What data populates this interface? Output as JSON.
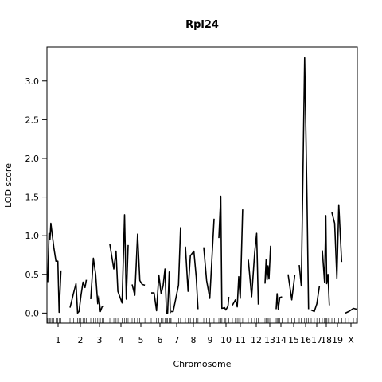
{
  "chart_data": {
    "type": "line",
    "title": "Rpl24",
    "xlabel": "Chromosome",
    "ylabel": "LOD score",
    "ylim": [
      -0.13,
      3.44
    ],
    "y_ticks": [
      0.0,
      0.5,
      1.0,
      1.5,
      2.0,
      2.5,
      3.0
    ],
    "y_tick_labels": [
      "0.0",
      "0.5",
      "1.0",
      "1.5",
      "2.0",
      "2.5",
      "3.0"
    ],
    "grid": false,
    "legend": "none",
    "line_color": "#000000",
    "chromosomes": [
      {
        "label": "1",
        "points": [
          [
            0,
            0.4
          ],
          [
            0.07,
            1.03
          ],
          [
            0.12,
            0.95
          ],
          [
            0.17,
            1.16
          ],
          [
            0.25,
            1.0
          ],
          [
            0.33,
            0.85
          ],
          [
            0.45,
            0.67
          ],
          [
            0.55,
            0.67
          ],
          [
            0.62,
            0.01
          ],
          [
            0.72,
            0.55
          ]
        ]
      },
      {
        "label": "2",
        "points": [
          [
            0.0,
            0.07
          ],
          [
            0.18,
            0.26
          ],
          [
            0.3,
            0.38
          ],
          [
            0.38,
            0.0
          ],
          [
            0.45,
            0.02
          ],
          [
            0.55,
            0.23
          ],
          [
            0.65,
            0.4
          ],
          [
            0.75,
            0.33
          ],
          [
            0.82,
            0.43
          ]
        ]
      },
      {
        "label": "3",
        "points": [
          [
            0.0,
            0.18
          ],
          [
            0.15,
            0.71
          ],
          [
            0.28,
            0.5
          ],
          [
            0.4,
            0.12
          ],
          [
            0.47,
            0.22
          ],
          [
            0.55,
            0.02
          ],
          [
            0.65,
            0.08
          ],
          [
            0.75,
            0.09
          ]
        ]
      },
      {
        "label": "4",
        "points": [
          [
            0.0,
            0.89
          ],
          [
            0.18,
            0.57
          ],
          [
            0.28,
            0.8
          ],
          [
            0.36,
            0.28
          ],
          [
            0.55,
            0.13
          ],
          [
            0.66,
            1.27
          ],
          [
            0.74,
            0.18
          ],
          [
            0.82,
            0.88
          ]
        ]
      },
      {
        "label": "5",
        "points": [
          [
            0.0,
            0.37
          ],
          [
            0.15,
            0.23
          ],
          [
            0.3,
            1.02
          ],
          [
            0.42,
            0.42
          ],
          [
            0.55,
            0.37
          ],
          [
            0.7,
            0.36
          ]
        ]
      },
      {
        "label": "6",
        "points": [
          [
            0.0,
            0.26
          ],
          [
            0.15,
            0.26
          ],
          [
            0.28,
            0.03
          ],
          [
            0.4,
            0.49
          ],
          [
            0.52,
            0.25
          ],
          [
            0.62,
            0.35
          ],
          [
            0.72,
            0.57
          ],
          [
            0.8,
            0.0
          ],
          [
            0.86,
            0.0
          ],
          [
            0.94,
            0.53
          ],
          [
            1.0,
            0.0
          ]
        ]
      },
      {
        "label": "7",
        "points": [
          [
            0.0,
            0.02
          ],
          [
            0.15,
            0.02
          ],
          [
            0.55,
            0.36
          ],
          [
            0.7,
            1.11
          ]
        ]
      },
      {
        "label": "8",
        "points": [
          [
            0.0,
            0.86
          ],
          [
            0.15,
            0.28
          ],
          [
            0.28,
            0.74
          ],
          [
            0.48,
            0.8
          ],
          [
            0.62,
            0.46
          ],
          [
            0.72,
            0.05
          ]
        ]
      },
      {
        "label": "9",
        "points": [
          [
            0.0,
            0.85
          ],
          [
            0.2,
            0.42
          ],
          [
            0.42,
            0.19
          ],
          [
            0.72,
            1.22
          ]
        ]
      },
      {
        "label": "10",
        "points": [
          [
            0.0,
            0.97
          ],
          [
            0.15,
            1.51
          ],
          [
            0.24,
            0.06
          ],
          [
            0.45,
            0.07
          ],
          [
            0.55,
            0.04
          ],
          [
            0.72,
            0.09
          ],
          [
            0.78,
            0.21
          ]
        ]
      },
      {
        "label": "11",
        "points": [
          [
            0.0,
            0.1
          ],
          [
            0.2,
            0.17
          ],
          [
            0.32,
            0.08
          ],
          [
            0.42,
            0.47
          ],
          [
            0.52,
            0.19
          ],
          [
            0.68,
            1.34
          ]
        ]
      },
      {
        "label": "12",
        "points": [
          [
            0.0,
            0.69
          ],
          [
            0.2,
            0.21
          ],
          [
            0.38,
            0.78
          ],
          [
            0.5,
            1.03
          ],
          [
            0.6,
            0.11
          ]
        ]
      },
      {
        "label": "13",
        "points": [
          [
            0.0,
            0.38
          ],
          [
            0.12,
            0.69
          ],
          [
            0.22,
            0.43
          ],
          [
            0.32,
            0.61
          ],
          [
            0.42,
            0.44
          ],
          [
            0.58,
            0.87
          ]
        ]
      },
      {
        "label": "14",
        "points": [
          [
            0.0,
            0.05
          ],
          [
            0.1,
            0.25
          ],
          [
            0.22,
            0.05
          ],
          [
            0.38,
            0.2
          ],
          [
            0.62,
            0.21
          ]
        ]
      },
      {
        "label": "15",
        "points": [
          [
            0.0,
            0.5
          ],
          [
            0.35,
            0.17
          ],
          [
            0.65,
            0.49
          ]
        ]
      },
      {
        "label": "16",
        "points": [
          [
            0.0,
            0.62
          ],
          [
            0.2,
            0.35
          ],
          [
            0.52,
            3.3
          ],
          [
            0.75,
            1.45
          ],
          [
            0.9,
            0.05
          ]
        ]
      },
      {
        "label": "17",
        "points": [
          [
            0.0,
            0.04
          ],
          [
            0.3,
            0.02
          ],
          [
            0.55,
            0.12
          ],
          [
            0.8,
            0.35
          ]
        ]
      },
      {
        "label": "18",
        "points": [
          [
            0.0,
            0.81
          ],
          [
            0.25,
            0.4
          ],
          [
            0.4,
            1.26
          ],
          [
            0.5,
            0.38
          ],
          [
            0.65,
            0.5
          ],
          [
            0.8,
            0.1
          ]
        ]
      },
      {
        "label": "19",
        "points": [
          [
            0.0,
            1.3
          ],
          [
            0.25,
            1.16
          ],
          [
            0.45,
            0.45
          ],
          [
            0.62,
            1.4
          ],
          [
            0.88,
            0.66
          ]
        ]
      },
      {
        "label": "X",
        "points": [
          [
            0.0,
            0.0
          ],
          [
            0.3,
            0.02
          ],
          [
            0.72,
            0.06
          ],
          [
            1.0,
            0.05
          ]
        ]
      }
    ]
  }
}
